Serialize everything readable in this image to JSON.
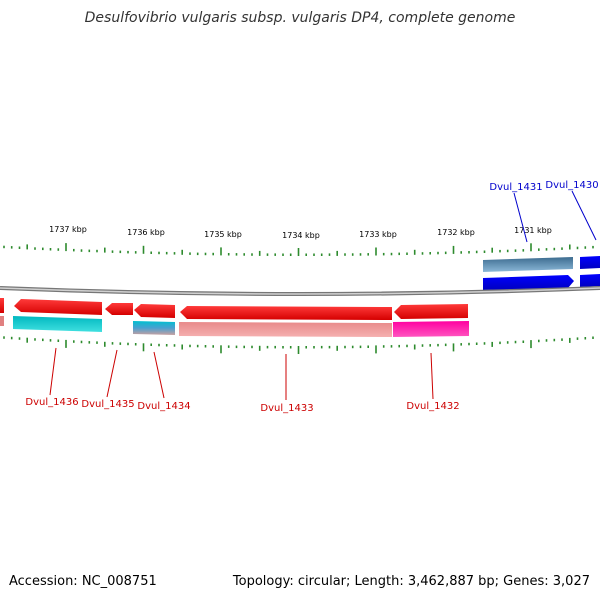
{
  "genome": {
    "title": "Desulfovibrio vulgaris subsp. vulgaris DP4, complete genome",
    "accession_label": "Accession: NC_008751",
    "topology_label": "Topology: circular; Length: 3,462,887 bp; Genes: 3,027"
  },
  "kbp_ticks": [
    "1737 kbp",
    "1736 kbp",
    "1735 kbp",
    "1734 kbp",
    "1733 kbp",
    "1732 kbp",
    "1731 kbp"
  ],
  "genes": [
    {
      "label": "Dvul_1436",
      "color": "#cc0000"
    },
    {
      "label": "Dvul_1435",
      "color": "#cc0000"
    },
    {
      "label": "Dvul_1434",
      "color": "#cc0000"
    },
    {
      "label": "Dvul_1433",
      "color": "#cc0000"
    },
    {
      "label": "Dvul_1432",
      "color": "#cc0000"
    },
    {
      "label": "Dvul_1431",
      "color": "#0000cc"
    },
    {
      "label": "Dvul_1430",
      "color": "#0000cc"
    }
  ],
  "colors": {
    "forward_strand": "#0000ff",
    "reverse_strand": "#ff0000",
    "tick_marks": "#2e8b2e",
    "backbone": "#888888"
  }
}
